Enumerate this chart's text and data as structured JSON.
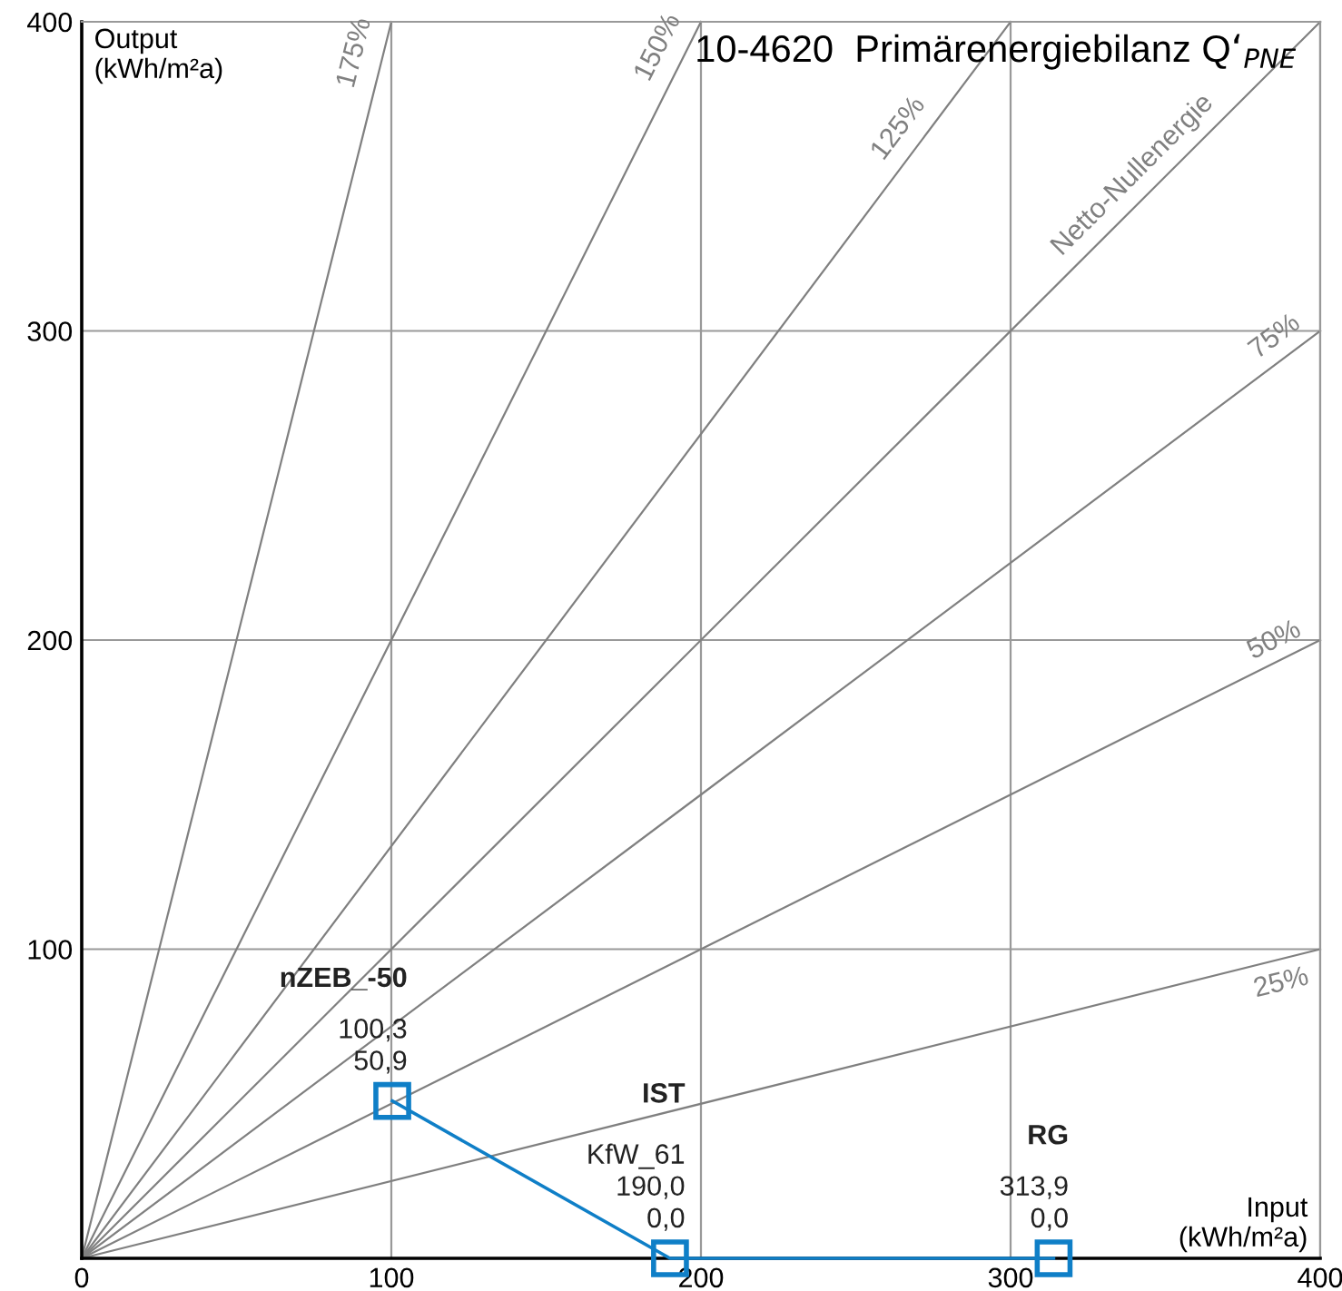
{
  "chart_data": {
    "type": "line",
    "title": "10-4620  Primärenergiebilanz Q‘$_{PNE}$",
    "xlabel": "Input\n(kWh/m²a)",
    "ylabel": "Output\n(kWh/m²a)",
    "xlim": [
      0,
      400
    ],
    "ylim": [
      0,
      400
    ],
    "xticks": [
      0,
      100,
      200,
      300,
      400
    ],
    "yticks": [
      100,
      200,
      300,
      400
    ],
    "grid": true,
    "legend": false,
    "line_style": "solid",
    "series": [
      {
        "name": "25%",
        "color": "#808080",
        "x": [
          0,
          400
        ],
        "values": [
          0,
          100
        ],
        "marker": "none"
      },
      {
        "name": "50%",
        "color": "#808080",
        "x": [
          0,
          400
        ],
        "values": [
          0,
          200
        ],
        "marker": "none"
      },
      {
        "name": "75%",
        "color": "#808080",
        "x": [
          0,
          400
        ],
        "values": [
          0,
          300
        ],
        "marker": "none"
      },
      {
        "name": "Netto-Nullenergie",
        "color": "#808080",
        "x": [
          0,
          400
        ],
        "values": [
          0,
          400
        ],
        "marker": "none"
      },
      {
        "name": "125%",
        "color": "#808080",
        "x": [
          0,
          300
        ],
        "values": [
          0,
          400
        ],
        "marker": "none"
      },
      {
        "name": "150%",
        "color": "#808080",
        "x": [
          0,
          200
        ],
        "values": [
          0,
          400
        ],
        "marker": "none"
      },
      {
        "name": "175%",
        "color": "#808080",
        "x": [
          0,
          100
        ],
        "values": [
          0,
          400
        ],
        "marker": "none"
      },
      {
        "color": "#0f7fc7",
        "x": [
          100.3,
          190.0,
          313.9
        ],
        "values": [
          50.9,
          0.0,
          0.0
        ],
        "marker": "square",
        "value_labels": [
          "100,3\n50,9",
          "KfW_61\n190,0\n0,0",
          "313,9\n0,0"
        ]
      }
    ],
    "annotations": [
      "nZEB_-50",
      "IST",
      "RG"
    ]
  }
}
